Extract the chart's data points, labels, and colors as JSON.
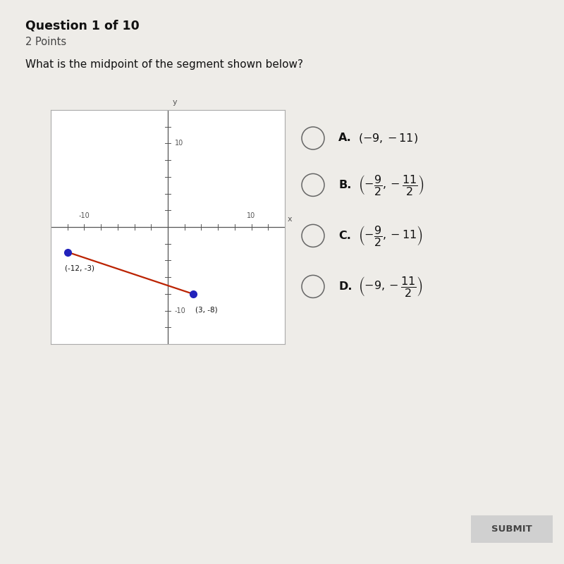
{
  "bg_color": "#eeece8",
  "title": "Question 1 of 10",
  "subtitle": "2 Points",
  "question": "What is the midpoint of the segment shown below?",
  "point1": [
    -12,
    -3
  ],
  "point2": [
    3,
    -8
  ],
  "point1_label": "(-12, -3)",
  "point2_label": "(3, -8)",
  "point1_color": "#2222bb",
  "line_color": "#bb2200",
  "axis_range": [
    -14,
    14
  ],
  "choice_letters": [
    "A",
    "B",
    "C",
    "D"
  ],
  "choice_texts": [
    "(-9, -11)",
    "B_frac",
    "C_frac",
    "D_frac"
  ]
}
